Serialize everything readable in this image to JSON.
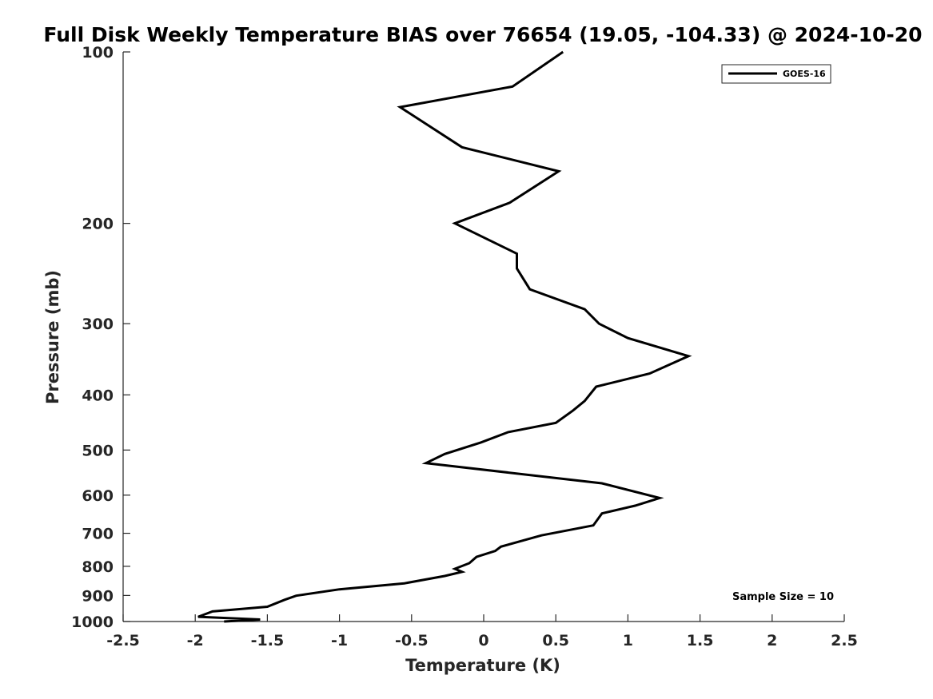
{
  "chart_data": {
    "type": "line",
    "title": "Full Disk Weekly Temperature BIAS over 76654 (19.05, -104.33) @ 2024-10-20",
    "xlabel": "Temperature (K)",
    "ylabel": "Pressure (mb)",
    "xlim": [
      -2.5,
      2.5
    ],
    "ylim": [
      100,
      1000
    ],
    "y_scale": "log",
    "y_reversed": true,
    "x_ticks": [
      -2.5,
      -2,
      -1.5,
      -1,
      -0.5,
      0,
      0.5,
      1,
      1.5,
      2,
      2.5
    ],
    "x_tick_labels": [
      "-2.5",
      "-2",
      "-1.5",
      "-1",
      "-0.5",
      "0",
      "0.5",
      "1",
      "1.5",
      "2",
      "2.5"
    ],
    "y_ticks": [
      100,
      200,
      300,
      400,
      500,
      600,
      700,
      800,
      900,
      1000
    ],
    "y_tick_labels": [
      "100",
      "200",
      "300",
      "400",
      "500",
      "600",
      "700",
      "800",
      "900",
      "1000"
    ],
    "grid": false,
    "legend_position": "top-right",
    "series": [
      {
        "name": "GOES-16",
        "color": "#000000",
        "x": [
          0.55,
          0.2,
          -0.58,
          -0.15,
          0.52,
          0.18,
          -0.2,
          0.23,
          0.23,
          0.32,
          0.7,
          0.8,
          1.0,
          1.42,
          1.15,
          0.78,
          0.7,
          0.62,
          0.5,
          0.17,
          -0.02,
          -0.27,
          -0.4,
          0.82,
          1.22,
          1.05,
          0.82,
          0.76,
          0.4,
          0.12,
          0.08,
          -0.05,
          -0.1,
          -0.2,
          -0.15,
          -0.27,
          -0.55,
          -1.0,
          -1.3,
          -1.38,
          -1.5,
          -1.88,
          -1.98,
          -1.55,
          -1.8
        ],
        "y": [
          100,
          115,
          125,
          147,
          162,
          184,
          200,
          226,
          240,
          261,
          283,
          300,
          318,
          342,
          367,
          387,
          410,
          426,
          448,
          465,
          485,
          508,
          527,
          572,
          607,
          626,
          646,
          678,
          706,
          739,
          752,
          770,
          790,
          808,
          818,
          832,
          857,
          878,
          901,
          916,
          942,
          960,
          981,
          992,
          1000
        ]
      }
    ],
    "annotations": [
      "Sample Size = 10"
    ]
  }
}
